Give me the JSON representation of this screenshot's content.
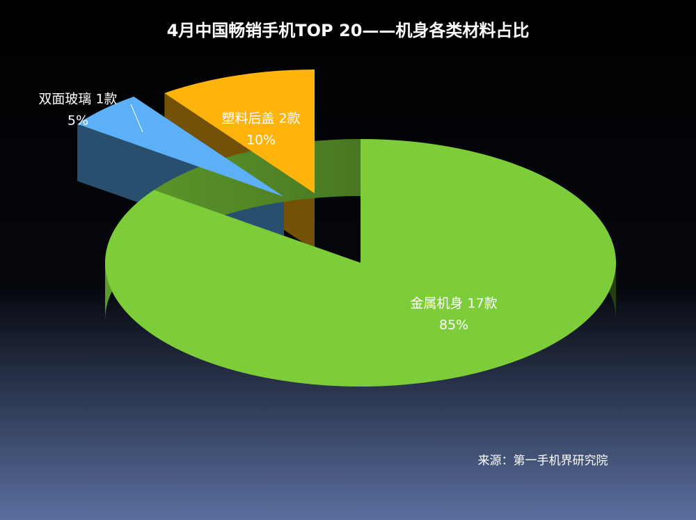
{
  "chart_data": {
    "type": "pie",
    "title": "4月中国畅销手机TOP 20——机身各类材料占比",
    "categories": [
      "金属机身 17款",
      "双面玻璃 1款",
      "塑料后盖 2款"
    ],
    "values": [
      85,
      5,
      10
    ],
    "value_labels": [
      "85%",
      "5%",
      "10%"
    ],
    "colors": [
      "#7dcd3a",
      "#5cb0f7",
      "#ffb30d"
    ],
    "source": "来源：第一手机界研究院"
  }
}
